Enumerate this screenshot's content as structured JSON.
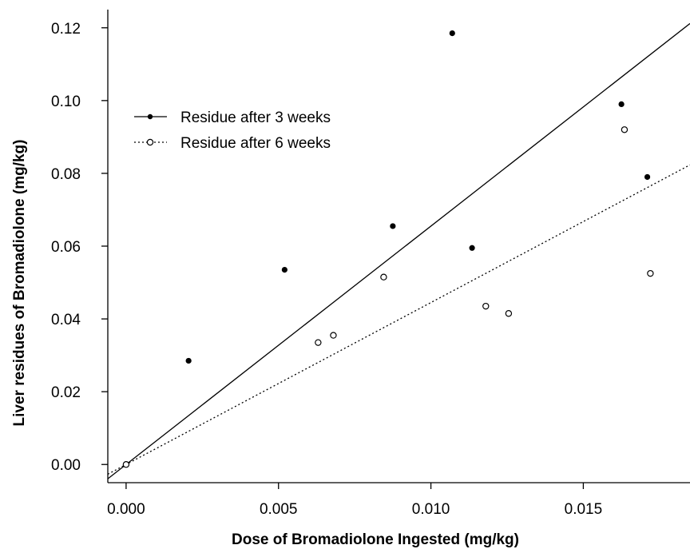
{
  "chart_data": {
    "type": "scatter",
    "title": "",
    "xlabel": "Dose of Bromadiolone Ingested (mg/kg)",
    "ylabel": "Liver residues of Bromadiolone (mg/kg)",
    "xlim": [
      -0.0006,
      0.0185
    ],
    "ylim": [
      -0.005,
      0.125
    ],
    "x_ticks": [
      "0.000",
      "0.005",
      "0.010",
      "0.015"
    ],
    "y_ticks": [
      "0.00",
      "0.02",
      "0.04",
      "0.06",
      "0.08",
      "0.10",
      "0.12"
    ],
    "grid": false,
    "legend_position": "top-left",
    "series": [
      {
        "name": "Residue after 3 weeks",
        "marker": "filled-circle",
        "line_style": "solid",
        "x": [
          0.0,
          0.00205,
          0.0052,
          0.00875,
          0.0107,
          0.01135,
          0.01625,
          0.0171
        ],
        "y": [
          0.0,
          0.0285,
          0.0535,
          0.0655,
          0.1185,
          0.0595,
          0.099,
          0.079
        ],
        "fit_line": {
          "intercept": 0.0,
          "slope": 6.55
        }
      },
      {
        "name": "Residue after 6 weeks",
        "marker": "open-circle",
        "line_style": "dotted",
        "x": [
          0.0,
          0.0063,
          0.0068,
          0.00845,
          0.0118,
          0.01255,
          0.01635,
          0.0172
        ],
        "y": [
          0.0,
          0.0335,
          0.0355,
          0.0515,
          0.0435,
          0.0415,
          0.092,
          0.0525
        ],
        "fit_line": {
          "intercept": 0.0,
          "slope": 4.45
        }
      }
    ]
  }
}
